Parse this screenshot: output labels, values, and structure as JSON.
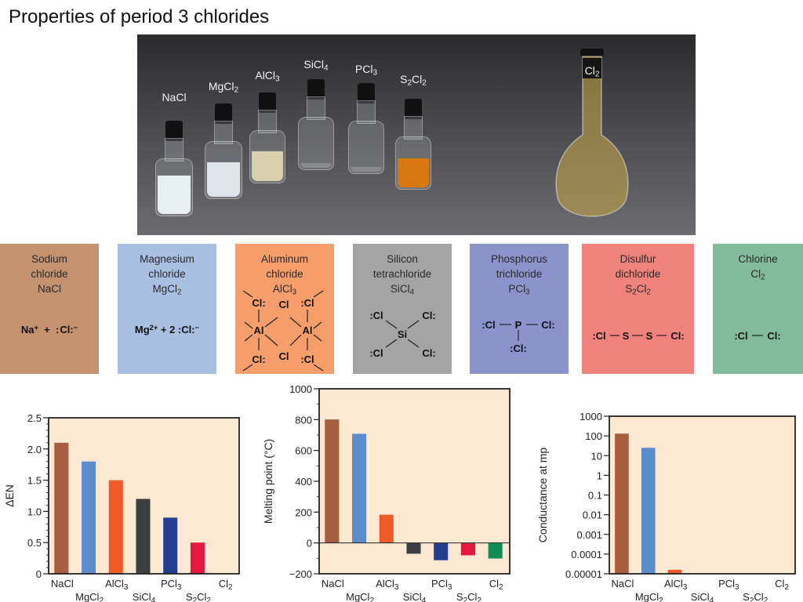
{
  "title": "Properties of period 3 chlorides",
  "photo": {
    "labels": [
      "NaCl",
      "MgCl2",
      "AlCl3",
      "SiCl4",
      "PCl3",
      "S2Cl2",
      "Cl2"
    ]
  },
  "compounds": [
    {
      "name_line1": "Sodium",
      "name_line2": "chloride",
      "formula": "NaCl",
      "color": "#c4926f",
      "lewis": "Na+ + :Cl:-"
    },
    {
      "name_line1": "Magnesium",
      "name_line2": "chloride",
      "formula": "MgCl2",
      "color": "#a8bfe2",
      "lewis": "Mg2+ + 2 :Cl:-"
    },
    {
      "name_line1": "Aluminum",
      "name_line2": "chloride",
      "formula": "AlCl3",
      "color": "#f59d6b",
      "lewis": "Al2Cl6 dimer"
    },
    {
      "name_line1": "Silicon",
      "name_line2": "tetrachloride",
      "formula": "SiCl4",
      "color": "#a3a4a3",
      "lewis": "SiCl4 tetrahedral"
    },
    {
      "name_line1": "Phosphorus",
      "name_line2": "trichloride",
      "formula": "PCl3",
      "color": "#8a93cc",
      "lewis": "Cl-P-Cl with Cl"
    },
    {
      "name_line1": "Disulfur",
      "name_line2": "dichloride",
      "formula": "S2Cl2",
      "color": "#f0827c",
      "lewis": "Cl-S-S-Cl"
    },
    {
      "name_line1": "Chlorine",
      "name_line2": "",
      "formula": "Cl2",
      "color": "#82bb9c",
      "lewis": "Cl-Cl"
    }
  ],
  "lewis_text": {
    "na": "Na",
    "plus_sup": "+",
    "plus": "+",
    "cl": "Cl",
    "minus": "−",
    "mg": "Mg",
    "two_plus": "2+",
    "two": "+ 2",
    "al": "Al",
    "si": "Si",
    "p": "P",
    "s": "S"
  },
  "chart_data": [
    {
      "type": "bar",
      "title": "",
      "xlabel": "",
      "ylabel": "ΔEN",
      "categories": [
        "NaCl",
        "MgCl2",
        "AlCl3",
        "SiCl4",
        "PCl3",
        "S2Cl2",
        "Cl2"
      ],
      "values": [
        2.1,
        1.8,
        1.5,
        1.2,
        0.9,
        0.5,
        0
      ],
      "ylim": [
        0,
        2.5
      ],
      "yticks": [
        "0",
        "0.5",
        "1.0",
        "1.5",
        "2.0",
        "2.5"
      ],
      "ytick_values": [
        0,
        0.5,
        1.0,
        1.5,
        2.0,
        2.5
      ],
      "scale": "linear",
      "colors": [
        "#a65e3e",
        "#5b8ccc",
        "#f05a28",
        "#3c3f42",
        "#243f8f",
        "#e5183f",
        "#0f8c57"
      ],
      "background": "#fde8d2"
    },
    {
      "type": "bar",
      "title": "",
      "xlabel": "",
      "ylabel": "Melting point (°C)",
      "categories": [
        "NaCl",
        "MgCl2",
        "AlCl3",
        "SiCl4",
        "PCl3",
        "S2Cl2",
        "Cl2"
      ],
      "values": [
        801,
        708,
        183,
        -70,
        -112,
        -80,
        -101
      ],
      "ylim": [
        -200,
        1000
      ],
      "yticks": [
        "−200",
        "0",
        "200",
        "400",
        "600",
        "800",
        "1000"
      ],
      "ytick_values": [
        -200,
        0,
        200,
        400,
        600,
        800,
        1000
      ],
      "scale": "linear",
      "colors": [
        "#a65e3e",
        "#5b8ccc",
        "#f05a28",
        "#3c3f42",
        "#243f8f",
        "#e5183f",
        "#0f8c57"
      ],
      "background": "#fde8d2"
    },
    {
      "type": "bar",
      "title": "",
      "xlabel": "",
      "ylabel": "Conductance at mp",
      "categories": [
        "NaCl",
        "MgCl2",
        "AlCl3",
        "SiCl4",
        "PCl3",
        "S2Cl2",
        "Cl2"
      ],
      "values": [
        130,
        25,
        1.6e-05,
        1e-05,
        1e-05,
        1e-05,
        1e-05
      ],
      "ylim": [
        1e-05,
        1000
      ],
      "yticks": [
        "0.00001",
        "0.0001",
        "0.001",
        "0.01",
        "0.1",
        "1",
        "10",
        "100",
        "1000"
      ],
      "ytick_values": [
        1e-05,
        0.0001,
        0.001,
        0.01,
        0.1,
        1,
        10,
        100,
        1000
      ],
      "scale": "log",
      "colors": [
        "#a65e3e",
        "#5b8ccc",
        "#f05a28",
        "#3c3f42",
        "#243f8f",
        "#e5183f",
        "#0f8c57"
      ],
      "background": "#fde8d2"
    }
  ]
}
